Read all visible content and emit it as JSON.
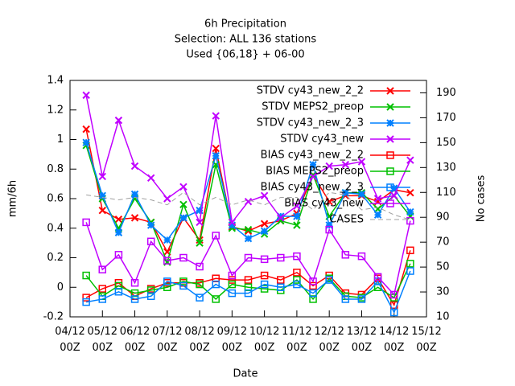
{
  "chart_data": {
    "type": "line",
    "title": [
      "6h Precipitation",
      "Selection: ALL    136 stations",
      "Used {06,18} + 06-00"
    ],
    "xlabel": "Date",
    "ylabel": "mm/6h",
    "y2label": "No cases",
    "x": [
      4.5,
      5,
      5.5,
      6,
      6.5,
      7,
      7.5,
      8,
      8.5,
      9,
      9.5,
      10,
      10.5,
      11,
      11.5,
      12,
      12.5,
      13,
      13.5,
      14,
      14.5
    ],
    "xlim": [
      4,
      15
    ],
    "xticks": [
      {
        "value": 4,
        "label": "04/12 00Z"
      },
      {
        "value": 5,
        "label": "05/12 00Z"
      },
      {
        "value": 6,
        "label": "06/12 00Z"
      },
      {
        "value": 7,
        "label": "07/12 00Z"
      },
      {
        "value": 8,
        "label": "08/12 00Z"
      },
      {
        "value": 9,
        "label": "09/12 00Z"
      },
      {
        "value": 10,
        "label": "10/12 00Z"
      },
      {
        "value": 11,
        "label": "11/12 00Z"
      },
      {
        "value": 12,
        "label": "12/12 00Z"
      },
      {
        "value": 13,
        "label": "13/12 00Z"
      },
      {
        "value": 14,
        "label": "14/12 00Z"
      },
      {
        "value": 15,
        "label": "15/12 00Z"
      }
    ],
    "ylim": [
      -0.2,
      1.4
    ],
    "yticks": [
      -0.2,
      0,
      0.2,
      0.4,
      0.6,
      0.8,
      1,
      1.2,
      1.4
    ],
    "y2lim": [
      10,
      200
    ],
    "y2ticks": [
      10,
      30,
      50,
      70,
      90,
      110,
      130,
      150,
      170,
      190
    ],
    "series": [
      {
        "name": "STDV cy43_new_2_2",
        "color": "#ff0000",
        "marker": "x",
        "values": [
          1.07,
          0.52,
          0.46,
          0.47,
          0.44,
          0.24,
          0.47,
          0.32,
          0.94,
          0.41,
          0.38,
          0.43,
          0.45,
          0.5,
          0.76,
          0.58,
          0.62,
          0.62,
          0.58,
          0.66,
          0.64
        ]
      },
      {
        "name": "STDV MEPS2_preop",
        "color": "#00c000",
        "marker": "x",
        "values": [
          0.96,
          0.6,
          0.4,
          0.6,
          0.44,
          0.17,
          0.56,
          0.3,
          0.83,
          0.4,
          0.39,
          0.36,
          0.45,
          0.42,
          0.76,
          0.48,
          0.64,
          0.64,
          0.53,
          0.62,
          0.48
        ]
      },
      {
        "name": "STDV cy43_new_2_3",
        "color": "#0080ff",
        "marker": "star",
        "values": [
          0.98,
          0.62,
          0.37,
          0.63,
          0.42,
          0.32,
          0.47,
          0.52,
          0.89,
          0.42,
          0.33,
          0.38,
          0.48,
          0.48,
          0.83,
          0.42,
          0.64,
          0.63,
          0.49,
          0.67,
          0.51
        ]
      },
      {
        "name": "STDV cy43_new",
        "color": "#c000ff",
        "marker": "x",
        "values": [
          1.3,
          0.75,
          1.13,
          0.82,
          0.74,
          0.6,
          0.68,
          0.44,
          1.16,
          0.44,
          0.58,
          0.62,
          0.47,
          0.55,
          0.75,
          0.82,
          0.83,
          0.85,
          0.6,
          0.62,
          0.86
        ]
      },
      {
        "name": "BIAS cy43_new_2_2",
        "color": "#ff0000",
        "marker": "square",
        "values": [
          -0.07,
          -0.01,
          0.03,
          -0.06,
          -0.01,
          0.03,
          0.03,
          0.03,
          0.06,
          0.05,
          0.05,
          0.08,
          0.05,
          0.1,
          0.01,
          0.08,
          -0.04,
          -0.05,
          0.06,
          -0.12,
          0.25
        ]
      },
      {
        "name": "BIAS MEPS2_preop",
        "color": "#00c000",
        "marker": "square",
        "values": [
          0.08,
          -0.06,
          0.01,
          -0.04,
          -0.02,
          0.0,
          0.04,
          0.02,
          -0.08,
          0.02,
          0.0,
          -0.01,
          -0.02,
          0.05,
          -0.08,
          0.06,
          -0.06,
          -0.07,
          0.0,
          -0.07,
          0.16
        ]
      },
      {
        "name": "BIAS cy43_new_2_3",
        "color": "#0080ff",
        "marker": "square",
        "values": [
          -0.1,
          -0.08,
          -0.03,
          -0.08,
          -0.06,
          0.04,
          0.01,
          -0.07,
          0.02,
          -0.04,
          -0.04,
          0.02,
          0.0,
          0.02,
          -0.04,
          0.05,
          -0.08,
          -0.08,
          0.04,
          -0.17,
          0.11
        ]
      },
      {
        "name": "BIAS cy43_new",
        "color": "#c000ff",
        "marker": "square",
        "values": [
          0.44,
          0.12,
          0.22,
          0.03,
          0.31,
          0.18,
          0.2,
          0.14,
          0.35,
          0.08,
          0.2,
          0.19,
          0.2,
          0.21,
          0.04,
          0.39,
          0.22,
          0.21,
          0.07,
          -0.05,
          0.45
        ]
      },
      {
        "name": "CASES",
        "color": "#a0a0a0",
        "marker": "none",
        "axis": "y2",
        "dash": true,
        "values": [
          108,
          106,
          104,
          106,
          104,
          100,
          110,
          100,
          106,
          100,
          104,
          100,
          106,
          106,
          96,
          110,
          108,
          96,
          98,
          92,
          88
        ]
      }
    ]
  }
}
